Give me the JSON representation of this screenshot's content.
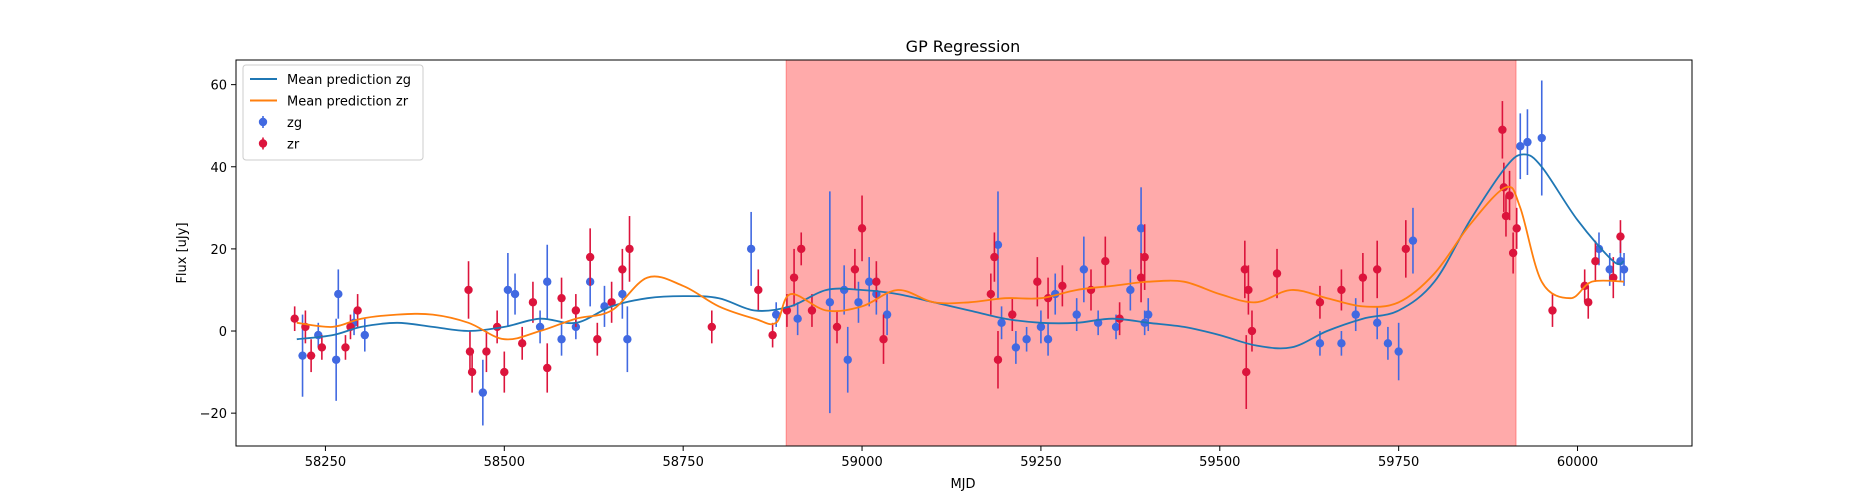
{
  "chart_data": {
    "type": "scatter",
    "title": "GP Regression",
    "xlabel": "MJD",
    "ylabel": "Flux [uJy]",
    "xlim": [
      58125,
      60160
    ],
    "ylim": [
      -28,
      66
    ],
    "xticks": [
      58250,
      58500,
      58750,
      59000,
      59250,
      59500,
      59750,
      60000
    ],
    "yticks": [
      -20,
      0,
      20,
      40,
      60
    ],
    "grid": false,
    "legend_position": "top-left",
    "shaded_region": {
      "x_start": 58894,
      "x_end": 59914,
      "color": "#ff5555"
    },
    "colors": {
      "zg": "#4169e1",
      "zr": "#dc143c",
      "mean_zg": "#1f77b4",
      "mean_zr": "#ff7f0e"
    },
    "legend": [
      {
        "label": "Mean prediction zg",
        "kind": "line",
        "color": "#1f77b4"
      },
      {
        "label": "Mean prediction zr",
        "kind": "line",
        "color": "#ff7f0e"
      },
      {
        "label": "zg",
        "kind": "point",
        "color": "#4169e1"
      },
      {
        "label": "zr",
        "kind": "point",
        "color": "#dc143c"
      }
    ],
    "series": [
      {
        "name": "Mean prediction zg",
        "kind": "line",
        "color": "#1f77b4",
        "x": [
          58210,
          58260,
          58300,
          58350,
          58400,
          58450,
          58500,
          58550,
          58600,
          58650,
          58700,
          58750,
          58800,
          58850,
          58900,
          58950,
          59000,
          59050,
          59100,
          59150,
          59200,
          59250,
          59300,
          59350,
          59400,
          59450,
          59500,
          59550,
          59600,
          59650,
          59700,
          59750,
          59800,
          59850,
          59900,
          59925,
          59950,
          60000,
          60050,
          60065
        ],
        "y": [
          -2,
          -1,
          1,
          2,
          1,
          0,
          1,
          3,
          2,
          6,
          8,
          8.5,
          8,
          5,
          6,
          10,
          10,
          9,
          7,
          5,
          3,
          2,
          2,
          3,
          2,
          1,
          -1,
          -3.5,
          -4,
          0,
          3,
          5,
          12,
          27,
          40,
          43,
          40,
          27,
          17,
          17
        ]
      },
      {
        "name": "Mean prediction zr",
        "kind": "line",
        "color": "#ff7f0e",
        "x": [
          58210,
          58260,
          58300,
          58350,
          58400,
          58450,
          58500,
          58550,
          58600,
          58650,
          58700,
          58750,
          58800,
          58850,
          58880,
          58900,
          58950,
          59000,
          59050,
          59100,
          59150,
          59200,
          59250,
          59300,
          59350,
          59400,
          59450,
          59500,
          59550,
          59600,
          59650,
          59700,
          59750,
          59800,
          59850,
          59900,
          59920,
          59950,
          59990,
          60020,
          60065
        ],
        "y": [
          2,
          1,
          3,
          4,
          4,
          2,
          -2,
          0,
          3,
          5,
          13,
          11,
          6,
          3,
          2,
          9,
          5,
          6,
          10,
          7,
          7,
          8,
          8,
          10,
          11,
          12,
          12,
          9,
          7,
          10,
          8,
          6,
          7,
          14,
          26,
          35,
          30,
          12,
          8,
          12,
          12
        ]
      },
      {
        "name": "zg",
        "kind": "errorbar",
        "color": "#4169e1",
        "points": [
          {
            "x": 58218,
            "y": -6,
            "e": 10
          },
          {
            "x": 58240,
            "y": -1,
            "e": 3
          },
          {
            "x": 58265,
            "y": -7,
            "e": 10
          },
          {
            "x": 58268,
            "y": 9,
            "e": 6
          },
          {
            "x": 58290,
            "y": 2,
            "e": 3
          },
          {
            "x": 58305,
            "y": -1,
            "e": 4
          },
          {
            "x": 58470,
            "y": -15,
            "e": 8
          },
          {
            "x": 58505,
            "y": 10,
            "e": 9
          },
          {
            "x": 58515,
            "y": 9,
            "e": 5
          },
          {
            "x": 58550,
            "y": 1,
            "e": 4
          },
          {
            "x": 58560,
            "y": 12,
            "e": 9
          },
          {
            "x": 58580,
            "y": -2,
            "e": 4
          },
          {
            "x": 58600,
            "y": 1,
            "e": 3
          },
          {
            "x": 58620,
            "y": 12,
            "e": 6
          },
          {
            "x": 58640,
            "y": 6,
            "e": 5
          },
          {
            "x": 58665,
            "y": 9,
            "e": 6
          },
          {
            "x": 58672,
            "y": -2,
            "e": 8
          },
          {
            "x": 58845,
            "y": 20,
            "e": 9
          },
          {
            "x": 58880,
            "y": 4,
            "e": 3
          },
          {
            "x": 58910,
            "y": 3,
            "e": 4
          },
          {
            "x": 58955,
            "y": 7,
            "e": 27
          },
          {
            "x": 58975,
            "y": 10,
            "e": 6
          },
          {
            "x": 58980,
            "y": -7,
            "e": 8
          },
          {
            "x": 58995,
            "y": 7,
            "e": 5
          },
          {
            "x": 59010,
            "y": 12,
            "e": 6
          },
          {
            "x": 59020,
            "y": 9,
            "e": 5
          },
          {
            "x": 59035,
            "y": 4,
            "e": 5
          },
          {
            "x": 59190,
            "y": 21,
            "e": 13
          },
          {
            "x": 59195,
            "y": 2,
            "e": 4
          },
          {
            "x": 59215,
            "y": -4,
            "e": 4
          },
          {
            "x": 59230,
            "y": -2,
            "e": 3
          },
          {
            "x": 59250,
            "y": 1,
            "e": 4
          },
          {
            "x": 59260,
            "y": -2,
            "e": 4
          },
          {
            "x": 59270,
            "y": 9,
            "e": 5
          },
          {
            "x": 59300,
            "y": 4,
            "e": 4
          },
          {
            "x": 59310,
            "y": 15,
            "e": 8
          },
          {
            "x": 59330,
            "y": 2,
            "e": 3
          },
          {
            "x": 59355,
            "y": 1,
            "e": 3
          },
          {
            "x": 59375,
            "y": 10,
            "e": 5
          },
          {
            "x": 59390,
            "y": 25,
            "e": 10
          },
          {
            "x": 59395,
            "y": 2,
            "e": 3
          },
          {
            "x": 59400,
            "y": 4,
            "e": 4
          },
          {
            "x": 59640,
            "y": -3,
            "e": 3
          },
          {
            "x": 59670,
            "y": -3,
            "e": 3
          },
          {
            "x": 59690,
            "y": 4,
            "e": 4
          },
          {
            "x": 59720,
            "y": 2,
            "e": 4
          },
          {
            "x": 59735,
            "y": -3,
            "e": 4
          },
          {
            "x": 59750,
            "y": -5,
            "e": 7
          },
          {
            "x": 59770,
            "y": 22,
            "e": 8
          },
          {
            "x": 59920,
            "y": 45,
            "e": 8
          },
          {
            "x": 59930,
            "y": 46,
            "e": 8
          },
          {
            "x": 59950,
            "y": 47,
            "e": 14
          },
          {
            "x": 60030,
            "y": 20,
            "e": 4
          },
          {
            "x": 60045,
            "y": 15,
            "e": 4
          },
          {
            "x": 60060,
            "y": 17,
            "e": 5
          },
          {
            "x": 60065,
            "y": 15,
            "e": 4
          }
        ]
      },
      {
        "name": "zr",
        "kind": "errorbar",
        "color": "#dc143c",
        "points": [
          {
            "x": 58207,
            "y": 3,
            "e": 3
          },
          {
            "x": 58222,
            "y": 1,
            "e": 4
          },
          {
            "x": 58230,
            "y": -6,
            "e": 4
          },
          {
            "x": 58245,
            "y": -4,
            "e": 3
          },
          {
            "x": 58278,
            "y": -4,
            "e": 3
          },
          {
            "x": 58285,
            "y": 1,
            "e": 3
          },
          {
            "x": 58295,
            "y": 5,
            "e": 4
          },
          {
            "x": 58450,
            "y": 10,
            "e": 7
          },
          {
            "x": 58452,
            "y": -5,
            "e": 5
          },
          {
            "x": 58455,
            "y": -10,
            "e": 5
          },
          {
            "x": 58475,
            "y": -5,
            "e": 5
          },
          {
            "x": 58490,
            "y": 1,
            "e": 4
          },
          {
            "x": 58500,
            "y": -10,
            "e": 5
          },
          {
            "x": 58525,
            "y": -3,
            "e": 4
          },
          {
            "x": 58540,
            "y": 7,
            "e": 5
          },
          {
            "x": 58560,
            "y": -9,
            "e": 6
          },
          {
            "x": 58580,
            "y": 8,
            "e": 5
          },
          {
            "x": 58600,
            "y": 5,
            "e": 4
          },
          {
            "x": 58620,
            "y": 18,
            "e": 7
          },
          {
            "x": 58630,
            "y": -2,
            "e": 4
          },
          {
            "x": 58650,
            "y": 7,
            "e": 5
          },
          {
            "x": 58665,
            "y": 15,
            "e": 5
          },
          {
            "x": 58675,
            "y": 20,
            "e": 8
          },
          {
            "x": 58790,
            "y": 1,
            "e": 4
          },
          {
            "x": 58855,
            "y": 10,
            "e": 5
          },
          {
            "x": 58875,
            "y": -1,
            "e": 3
          },
          {
            "x": 58895,
            "y": 5,
            "e": 4
          },
          {
            "x": 58905,
            "y": 13,
            "e": 7
          },
          {
            "x": 58915,
            "y": 20,
            "e": 4
          },
          {
            "x": 58930,
            "y": 5,
            "e": 4
          },
          {
            "x": 58965,
            "y": 1,
            "e": 4
          },
          {
            "x": 58990,
            "y": 15,
            "e": 5
          },
          {
            "x": 59000,
            "y": 25,
            "e": 8
          },
          {
            "x": 59020,
            "y": 12,
            "e": 5
          },
          {
            "x": 59030,
            "y": -2,
            "e": 6
          },
          {
            "x": 59180,
            "y": 9,
            "e": 5
          },
          {
            "x": 59185,
            "y": 18,
            "e": 6
          },
          {
            "x": 59190,
            "y": -7,
            "e": 7
          },
          {
            "x": 59210,
            "y": 4,
            "e": 4
          },
          {
            "x": 59245,
            "y": 12,
            "e": 6
          },
          {
            "x": 59260,
            "y": 8,
            "e": 5
          },
          {
            "x": 59280,
            "y": 11,
            "e": 5
          },
          {
            "x": 59320,
            "y": 10,
            "e": 5
          },
          {
            "x": 59340,
            "y": 17,
            "e": 6
          },
          {
            "x": 59360,
            "y": 3,
            "e": 4
          },
          {
            "x": 59390,
            "y": 13,
            "e": 6
          },
          {
            "x": 59395,
            "y": 18,
            "e": 8
          },
          {
            "x": 59535,
            "y": 15,
            "e": 7
          },
          {
            "x": 59537,
            "y": -10,
            "e": 9
          },
          {
            "x": 59540,
            "y": 10,
            "e": 6
          },
          {
            "x": 59545,
            "y": 0,
            "e": 5
          },
          {
            "x": 59580,
            "y": 14,
            "e": 6
          },
          {
            "x": 59640,
            "y": 7,
            "e": 4
          },
          {
            "x": 59670,
            "y": 10,
            "e": 5
          },
          {
            "x": 59700,
            "y": 13,
            "e": 6
          },
          {
            "x": 59720,
            "y": 15,
            "e": 7
          },
          {
            "x": 59760,
            "y": 20,
            "e": 7
          },
          {
            "x": 59895,
            "y": 49,
            "e": 7
          },
          {
            "x": 59897,
            "y": 35,
            "e": 6
          },
          {
            "x": 59900,
            "y": 28,
            "e": 5
          },
          {
            "x": 59905,
            "y": 33,
            "e": 6
          },
          {
            "x": 59910,
            "y": 19,
            "e": 5
          },
          {
            "x": 59915,
            "y": 25,
            "e": 5
          },
          {
            "x": 59965,
            "y": 5,
            "e": 4
          },
          {
            "x": 60010,
            "y": 11,
            "e": 4
          },
          {
            "x": 60015,
            "y": 7,
            "e": 4
          },
          {
            "x": 60025,
            "y": 17,
            "e": 5
          },
          {
            "x": 60050,
            "y": 13,
            "e": 5
          },
          {
            "x": 60060,
            "y": 23,
            "e": 4
          }
        ]
      }
    ]
  }
}
